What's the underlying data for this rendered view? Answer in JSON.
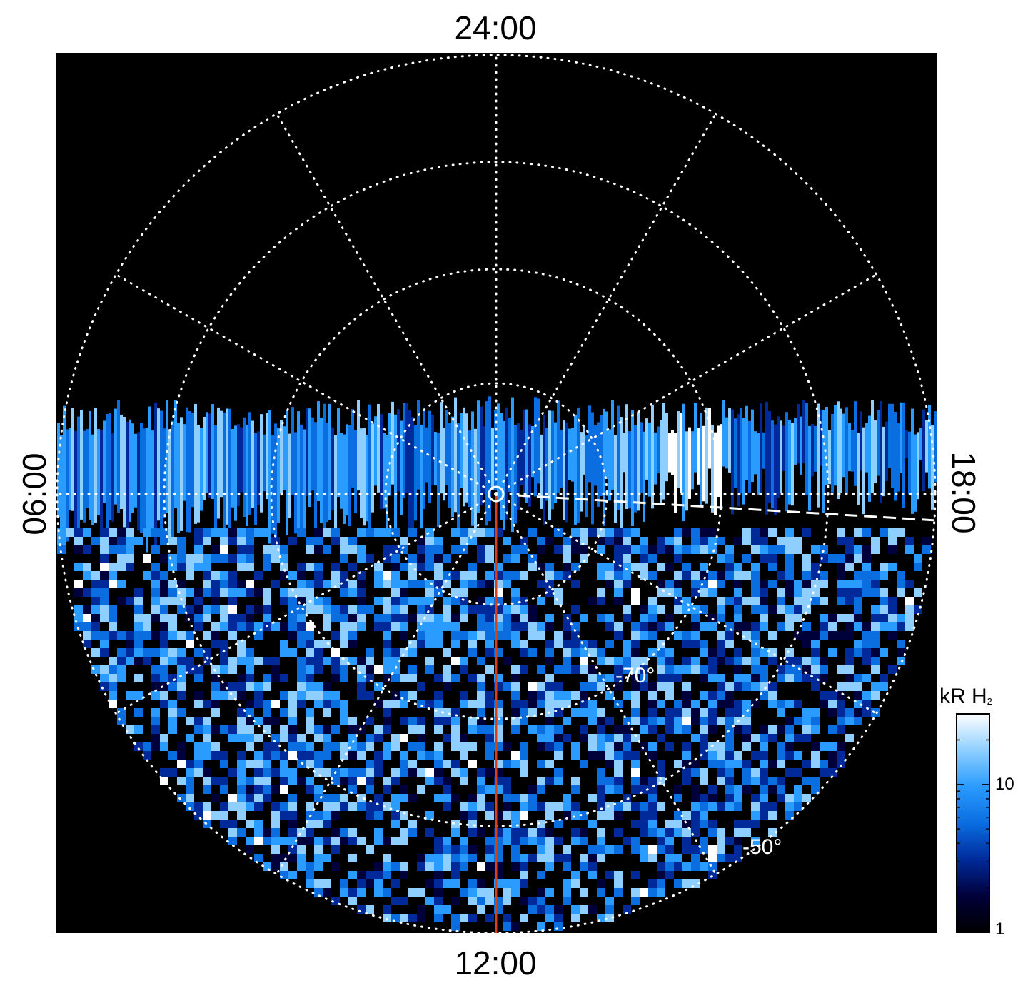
{
  "chart_data": {
    "type": "heatmap",
    "projection": "polar, south pole",
    "lt_labels": {
      "top": "24:00",
      "bottom": "12:00",
      "left": "06:00",
      "right": "18:00"
    },
    "lat_labels": [
      "-70°",
      "-50°"
    ],
    "lat_circles_deg": [
      -80,
      -70,
      -60,
      -50,
      -40
    ],
    "lt_meridian_step_hours": 2,
    "colorbar": {
      "title": "kR H",
      "title_sub": "2",
      "scale": "log",
      "ticks": [
        "10",
        "1"
      ],
      "range": [
        1,
        30
      ],
      "colors": [
        "#000000",
        "#00003a",
        "#002a9a",
        "#0a6ee0",
        "#2a9bff",
        "#8ecfff",
        "#ffffff"
      ]
    },
    "annotations": [
      "red line along 12:00 meridian",
      "dashed line toward 18:00"
    ]
  }
}
